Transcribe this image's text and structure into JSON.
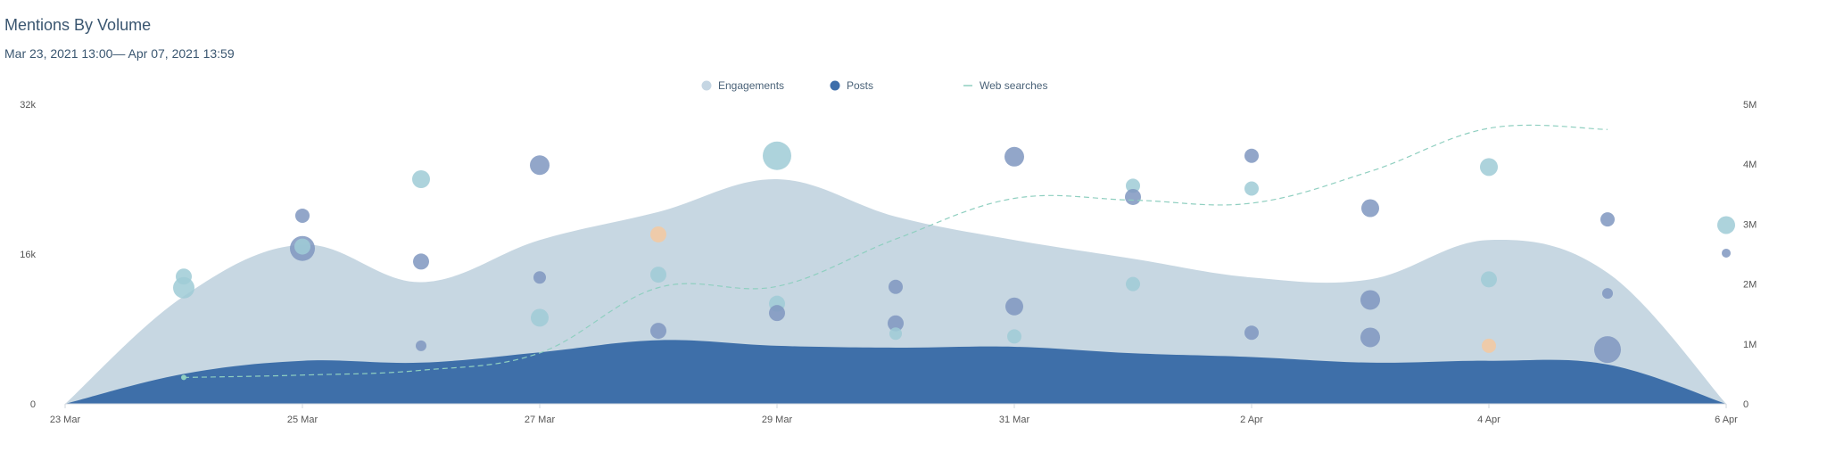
{
  "header": {
    "title": "Mentions By Volume",
    "subtitle": "Mar 23, 2021 13:00— Apr 07, 2021 13:59"
  },
  "legend": [
    {
      "name": "Engagements",
      "color": "#c5d6e3",
      "symbol": "circle"
    },
    {
      "name": "Posts",
      "color": "#3e6eaa",
      "symbol": "circle"
    },
    {
      "name": "Web searches",
      "color": "#8fcfc0",
      "symbol": "dash"
    }
  ],
  "colors": {
    "engagements_area": "#c7d7e2",
    "posts_area": "#3e6fa9",
    "web_searches_line": "#8fcfc0",
    "bubble_teal": "#9fcbd6",
    "bubble_blue": "#7f97bf",
    "bubble_orange": "#f5c9a0"
  },
  "chart_data": {
    "type": "area",
    "title": "Mentions By Volume",
    "x_tick_labels": [
      "23 Mar",
      "25 Mar",
      "27 Mar",
      "29 Mar",
      "31 Mar",
      "2 Apr",
      "4 Apr",
      "6 Apr"
    ],
    "y_left": {
      "ticks": [
        "0",
        "16k",
        "32k"
      ],
      "range": [
        0,
        32000
      ]
    },
    "y_right": {
      "ticks": [
        "0",
        "1M",
        "2M",
        "3M",
        "4M",
        "5M"
      ],
      "range": [
        0,
        5000000
      ]
    },
    "x_range_days": [
      "2021-03-23",
      "2021-04-06"
    ],
    "series": [
      {
        "name": "Engagements",
        "axis": "left",
        "points": [
          {
            "x": "2021-03-23",
            "y": 0
          },
          {
            "x": "2021-03-24",
            "y": 11500
          },
          {
            "x": "2021-03-25",
            "y": 17000
          },
          {
            "x": "2021-03-26",
            "y": 13000
          },
          {
            "x": "2021-03-27",
            "y": 17500
          },
          {
            "x": "2021-03-28",
            "y": 20500
          },
          {
            "x": "2021-03-29",
            "y": 24000
          },
          {
            "x": "2021-03-30",
            "y": 20000
          },
          {
            "x": "2021-03-31",
            "y": 17500
          },
          {
            "x": "2021-04-01",
            "y": 15500
          },
          {
            "x": "2021-04-02",
            "y": 13500
          },
          {
            "x": "2021-04-03",
            "y": 13300
          },
          {
            "x": "2021-04-04",
            "y": 17500
          },
          {
            "x": "2021-04-05",
            "y": 14000
          },
          {
            "x": "2021-04-06",
            "y": 0
          }
        ]
      },
      {
        "name": "Posts",
        "axis": "left",
        "points": [
          {
            "x": "2021-03-23",
            "y": 0
          },
          {
            "x": "2021-03-24",
            "y": 3200
          },
          {
            "x": "2021-03-25",
            "y": 4600
          },
          {
            "x": "2021-03-26",
            "y": 4400
          },
          {
            "x": "2021-03-27",
            "y": 5500
          },
          {
            "x": "2021-03-28",
            "y": 6800
          },
          {
            "x": "2021-03-29",
            "y": 6200
          },
          {
            "x": "2021-03-30",
            "y": 6000
          },
          {
            "x": "2021-03-31",
            "y": 6100
          },
          {
            "x": "2021-04-01",
            "y": 5400
          },
          {
            "x": "2021-04-02",
            "y": 5000
          },
          {
            "x": "2021-04-03",
            "y": 4400
          },
          {
            "x": "2021-04-04",
            "y": 4600
          },
          {
            "x": "2021-04-05",
            "y": 4200
          },
          {
            "x": "2021-04-06",
            "y": 0
          }
        ]
      },
      {
        "name": "Web searches",
        "axis": "right",
        "points": [
          {
            "x": "2021-03-24",
            "y": 440000
          },
          {
            "x": "2021-03-25",
            "y": 480000
          },
          {
            "x": "2021-03-26",
            "y": 560000
          },
          {
            "x": "2021-03-27",
            "y": 850000
          },
          {
            "x": "2021-03-28",
            "y": 1940000
          },
          {
            "x": "2021-03-29",
            "y": 1960000
          },
          {
            "x": "2021-03-30",
            "y": 2750000
          },
          {
            "x": "2021-03-31",
            "y": 3430000
          },
          {
            "x": "2021-04-01",
            "y": 3400000
          },
          {
            "x": "2021-04-02",
            "y": 3350000
          },
          {
            "x": "2021-04-03",
            "y": 3880000
          },
          {
            "x": "2021-04-04",
            "y": 4600000
          },
          {
            "x": "2021-04-05",
            "y": 4580000
          }
        ]
      }
    ],
    "bubbles": [
      {
        "x": "2021-03-24",
        "y": 13600,
        "size": 9,
        "color": "teal"
      },
      {
        "x": "2021-03-24",
        "y": 12400,
        "size": 12,
        "color": "teal"
      },
      {
        "x": "2021-03-25",
        "y": 20100,
        "size": 8,
        "color": "blue"
      },
      {
        "x": "2021-03-25",
        "y": 16600,
        "size": 14,
        "color": "blue"
      },
      {
        "x": "2021-03-25",
        "y": 16800,
        "size": 9,
        "color": "teal"
      },
      {
        "x": "2021-03-26",
        "y": 24000,
        "size": 10,
        "color": "teal"
      },
      {
        "x": "2021-03-26",
        "y": 15200,
        "size": 9,
        "color": "blue"
      },
      {
        "x": "2021-03-26",
        "y": 6200,
        "size": 6,
        "color": "blue"
      },
      {
        "x": "2021-03-27",
        "y": 25500,
        "size": 11,
        "color": "blue"
      },
      {
        "x": "2021-03-27",
        "y": 13500,
        "size": 7,
        "color": "blue"
      },
      {
        "x": "2021-03-27",
        "y": 9200,
        "size": 10,
        "color": "teal"
      },
      {
        "x": "2021-03-28",
        "y": 18100,
        "size": 9,
        "color": "orange"
      },
      {
        "x": "2021-03-28",
        "y": 13800,
        "size": 9,
        "color": "teal"
      },
      {
        "x": "2021-03-28",
        "y": 7800,
        "size": 9,
        "color": "blue"
      },
      {
        "x": "2021-03-29",
        "y": 26500,
        "size": 16,
        "color": "teal"
      },
      {
        "x": "2021-03-29",
        "y": 10700,
        "size": 9,
        "color": "teal"
      },
      {
        "x": "2021-03-29",
        "y": 9700,
        "size": 9,
        "color": "blue"
      },
      {
        "x": "2021-03-30",
        "y": 12500,
        "size": 8,
        "color": "blue"
      },
      {
        "x": "2021-03-30",
        "y": 8600,
        "size": 9,
        "color": "blue"
      },
      {
        "x": "2021-03-30",
        "y": 7500,
        "size": 7,
        "color": "teal"
      },
      {
        "x": "2021-03-31",
        "y": 26400,
        "size": 11,
        "color": "blue"
      },
      {
        "x": "2021-03-31",
        "y": 10400,
        "size": 10,
        "color": "blue"
      },
      {
        "x": "2021-03-31",
        "y": 7200,
        "size": 8,
        "color": "teal"
      },
      {
        "x": "2021-04-01",
        "y": 23300,
        "size": 8,
        "color": "teal"
      },
      {
        "x": "2021-04-01",
        "y": 22100,
        "size": 9,
        "color": "blue"
      },
      {
        "x": "2021-04-01",
        "y": 12800,
        "size": 8,
        "color": "teal"
      },
      {
        "x": "2021-04-02",
        "y": 26500,
        "size": 8,
        "color": "blue"
      },
      {
        "x": "2021-04-02",
        "y": 23000,
        "size": 8,
        "color": "teal"
      },
      {
        "x": "2021-04-02",
        "y": 7600,
        "size": 8,
        "color": "blue"
      },
      {
        "x": "2021-04-03",
        "y": 20900,
        "size": 10,
        "color": "blue"
      },
      {
        "x": "2021-04-03",
        "y": 11100,
        "size": 11,
        "color": "blue"
      },
      {
        "x": "2021-04-03",
        "y": 7100,
        "size": 11,
        "color": "blue"
      },
      {
        "x": "2021-04-04",
        "y": 25300,
        "size": 10,
        "color": "teal"
      },
      {
        "x": "2021-04-04",
        "y": 13300,
        "size": 9,
        "color": "teal"
      },
      {
        "x": "2021-04-04",
        "y": 6200,
        "size": 8,
        "color": "orange"
      },
      {
        "x": "2021-04-05",
        "y": 19700,
        "size": 8,
        "color": "blue"
      },
      {
        "x": "2021-04-05",
        "y": 11800,
        "size": 6,
        "color": "blue"
      },
      {
        "x": "2021-04-05",
        "y": 5800,
        "size": 15,
        "color": "blue"
      },
      {
        "x": "2021-04-06",
        "y": 19100,
        "size": 10,
        "color": "teal"
      },
      {
        "x": "2021-04-06",
        "y": 16100,
        "size": 5,
        "color": "blue"
      }
    ],
    "legend_position": "top-center",
    "grid": false
  }
}
